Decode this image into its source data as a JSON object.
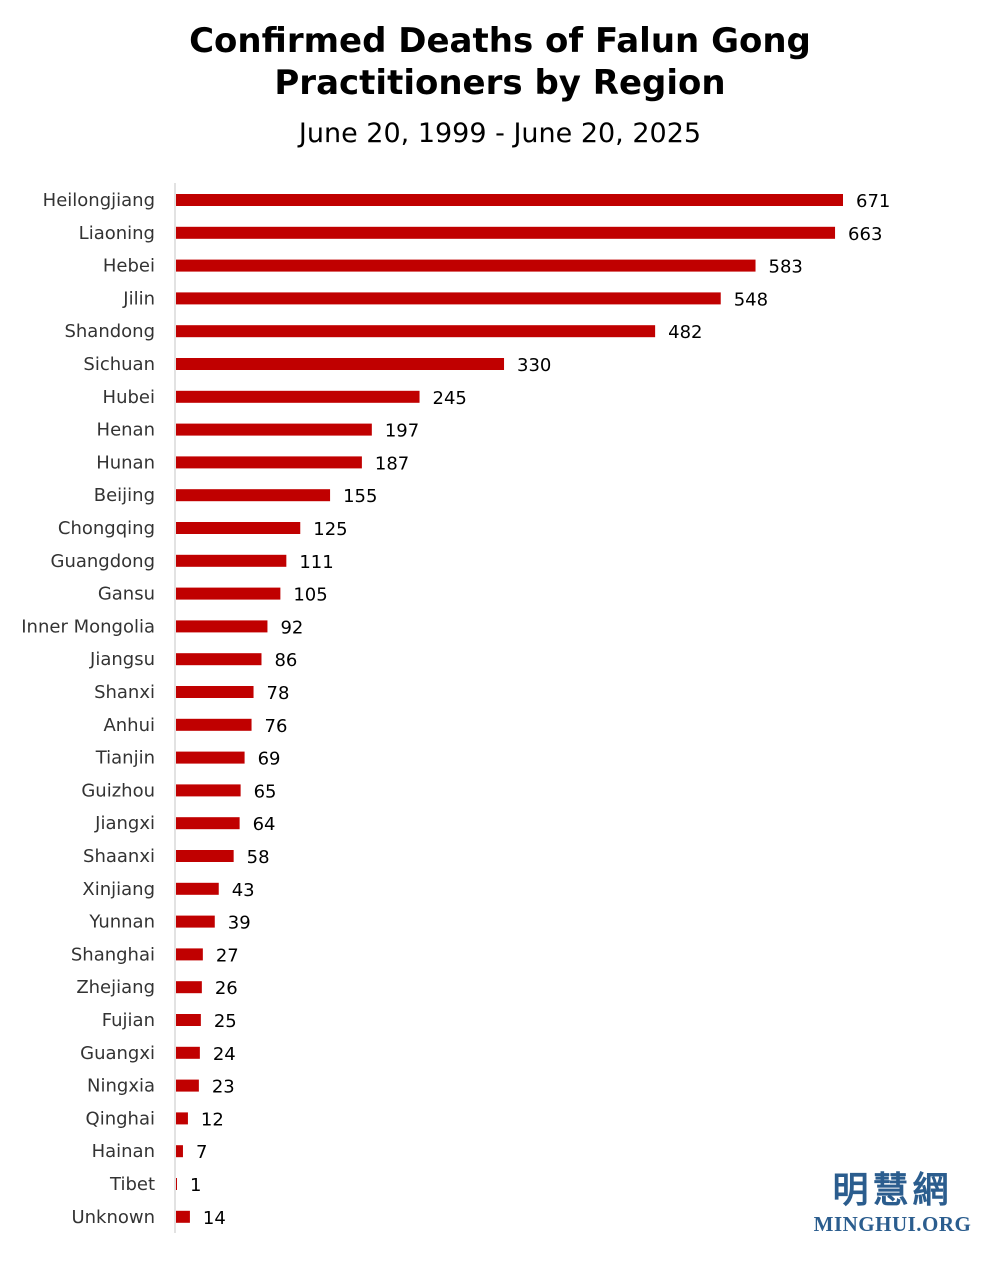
{
  "title_line1": "Confirmed Deaths of Falun Gong",
  "title_line2": "Practitioners by Region",
  "subtitle": "June 20, 1999 - June 20, 2025",
  "logo": {
    "chinese": "明慧網",
    "site": "MINGHUI.ORG",
    "color": "#2b5d8e"
  },
  "chart_data": {
    "type": "bar",
    "orientation": "horizontal",
    "title": "Confirmed Deaths of Falun Gong Practitioners by Region",
    "subtitle": "June 20, 1999 - June 20, 2025",
    "xlabel": "",
    "ylabel": "",
    "grid": false,
    "legend": "none",
    "bar_color": "#c00000",
    "xlim": [
      0,
      700
    ],
    "categories": [
      "Heilongjiang",
      "Liaoning",
      "Hebei",
      "Jilin",
      "Shandong",
      "Sichuan",
      "Hubei",
      "Henan",
      "Hunan",
      "Beijing",
      "Chongqing",
      "Guangdong",
      "Gansu",
      "Inner Mongolia",
      "Jiangsu",
      "Shanxi",
      "Anhui",
      "Tianjin",
      "Guizhou",
      "Jiangxi",
      "Shaanxi",
      "Xinjiang",
      "Yunnan",
      "Shanghai",
      "Zhejiang",
      "Fujian",
      "Guangxi",
      "Ningxia",
      "Qinghai",
      "Hainan",
      "Tibet",
      "Unknown"
    ],
    "values": [
      671,
      663,
      583,
      548,
      482,
      330,
      245,
      197,
      187,
      155,
      125,
      111,
      105,
      92,
      86,
      78,
      76,
      69,
      65,
      64,
      58,
      43,
      39,
      27,
      26,
      25,
      24,
      23,
      12,
      7,
      1,
      14
    ]
  }
}
